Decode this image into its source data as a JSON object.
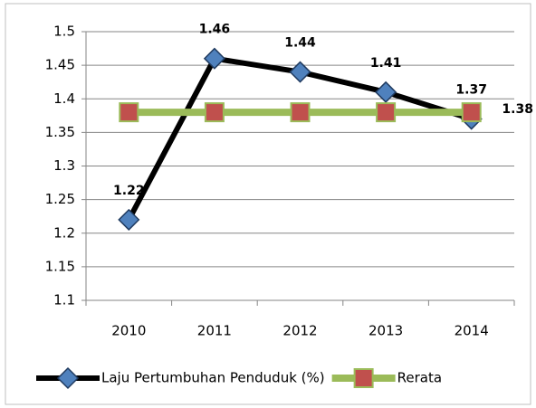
{
  "chart_data": {
    "type": "line",
    "categories": [
      "2010",
      "2011",
      "2012",
      "2013",
      "2014"
    ],
    "series": [
      {
        "name": "Laju Pertumbuhan Penduduk (%)",
        "color": "#000000",
        "marker_color": "#4f81bd",
        "marker": "diamond",
        "data_labels": "all",
        "values": [
          1.22,
          1.46,
          1.44,
          1.41,
          1.37
        ]
      },
      {
        "name": "Rerata",
        "color": "#9bbb59",
        "marker_color": "#c0504d",
        "marker": "square",
        "data_labels": "last",
        "values": [
          1.38,
          1.38,
          1.38,
          1.38,
          1.38
        ]
      }
    ],
    "ylim": [
      1.1,
      1.5
    ],
    "yticks": [
      1.1,
      1.15,
      1.2,
      1.25,
      1.3,
      1.35,
      1.4,
      1.45,
      1.5
    ],
    "grid": true,
    "legend": "bottom"
  }
}
